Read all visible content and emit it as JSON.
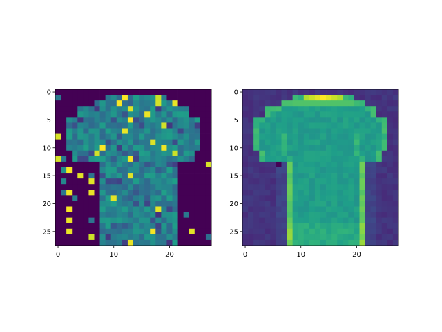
{
  "chart_data": [
    {
      "type": "heatmap",
      "title": "",
      "xlabel": "",
      "ylabel": "",
      "xlim": [
        -0.5,
        27.5
      ],
      "ylim": [
        27.5,
        -0.5
      ],
      "grid": false,
      "colormap": "viridis",
      "x_ticks": [
        0,
        10,
        20
      ],
      "y_ticks": [
        0,
        5,
        10,
        15,
        20,
        25
      ],
      "description_of_content": "",
      "shape": [
        28,
        28
      ],
      "background_value": 0.0,
      "base_shirt_value": 0.45,
      "bright_pixels": [
        [
          1,
          12
        ],
        [
          1,
          18
        ],
        [
          2,
          11
        ],
        [
          2,
          18
        ],
        [
          2,
          21
        ],
        [
          3,
          13
        ],
        [
          4,
          16
        ],
        [
          5,
          13
        ],
        [
          6,
          19
        ],
        [
          7,
          12
        ],
        [
          8,
          0
        ],
        [
          9,
          17
        ],
        [
          10,
          8
        ],
        [
          10,
          19
        ],
        [
          11,
          7
        ],
        [
          11,
          21
        ],
        [
          12,
          0
        ],
        [
          12,
          13
        ],
        [
          13,
          27
        ],
        [
          14,
          2
        ],
        [
          15,
          4
        ],
        [
          15,
          13
        ],
        [
          16,
          6
        ],
        [
          18,
          6
        ],
        [
          18,
          2
        ],
        [
          19,
          10
        ],
        [
          21,
          2
        ],
        [
          21,
          18
        ],
        [
          23,
          2
        ],
        [
          25,
          2
        ],
        [
          25,
          17
        ],
        [
          25,
          24
        ],
        [
          26,
          6
        ],
        [
          27,
          13
        ]
      ],
      "speckle_pixels": [
        [
          1,
          0
        ],
        [
          9,
          2
        ],
        [
          10,
          6
        ],
        [
          12,
          1
        ],
        [
          14,
          1
        ],
        [
          14,
          21
        ],
        [
          15,
          6
        ],
        [
          16,
          1
        ],
        [
          17,
          19
        ],
        [
          18,
          1
        ],
        [
          19,
          3
        ],
        [
          20,
          17
        ],
        [
          22,
          23
        ],
        [
          23,
          6
        ],
        [
          26,
          27
        ]
      ]
    },
    {
      "type": "heatmap",
      "title": "",
      "xlabel": "",
      "ylabel": "",
      "xlim": [
        -0.5,
        27.5
      ],
      "ylim": [
        27.5,
        -0.5
      ],
      "grid": false,
      "colormap": "viridis",
      "x_ticks": [
        0,
        10,
        20
      ],
      "y_ticks": [
        0,
        5,
        10,
        15,
        20,
        25
      ],
      "shape": [
        28,
        28
      ],
      "background_value": 0.12,
      "base_shirt_value": 0.55,
      "collar_highlight_value": 1.0
    }
  ],
  "colors": {
    "viridis": [
      "#440154",
      "#482878",
      "#3e4989",
      "#31688e",
      "#26828e",
      "#1f9e89",
      "#35b779",
      "#6ece58",
      "#b5de2b",
      "#fde725"
    ]
  }
}
